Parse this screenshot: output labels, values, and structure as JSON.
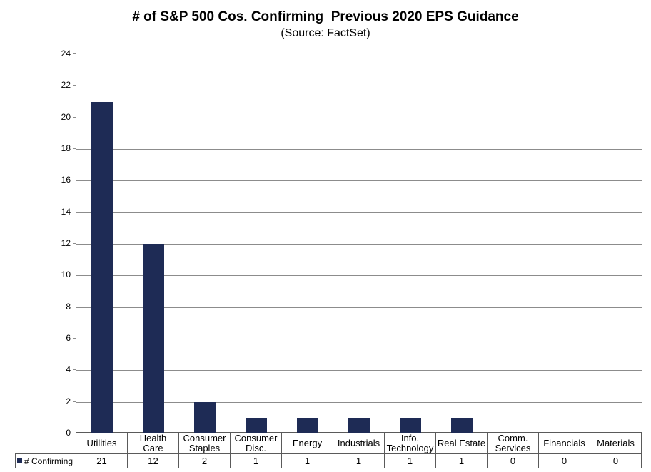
{
  "title": "# of S&P 500 Cos. Confirming  Previous 2020 EPS Guidance",
  "subtitle": "(Source: FactSet)",
  "legend": {
    "label": "# Confirming"
  },
  "colors": {
    "bar": "#1E2B55",
    "gridline": "#8C8C8C",
    "axis_line": "#8C8C8C",
    "table_border": "#5A5A5A",
    "frame_border": "#A6A6A6",
    "text": "#000000",
    "background": "#FFFFFF"
  },
  "chart_data": {
    "type": "bar",
    "title": "# of S&P 500 Cos. Confirming  Previous 2020 EPS Guidance",
    "subtitle": "(Source: FactSet)",
    "categories": [
      "Utilities",
      "Health Care",
      "Consumer Staples",
      "Consumer Disc.",
      "Energy",
      "Industrials",
      "Info. Technology",
      "Real Estate",
      "Comm. Services",
      "Financials",
      "Materials"
    ],
    "series": [
      {
        "name": "# Confirming",
        "values": [
          21,
          12,
          2,
          1,
          1,
          1,
          1,
          1,
          0,
          0,
          0
        ]
      }
    ],
    "xlabel": "",
    "ylabel": "",
    "ylim": [
      0,
      24
    ],
    "ytick_step": 2,
    "grid": true,
    "legend_position": "bottom-left",
    "data_table": true
  }
}
